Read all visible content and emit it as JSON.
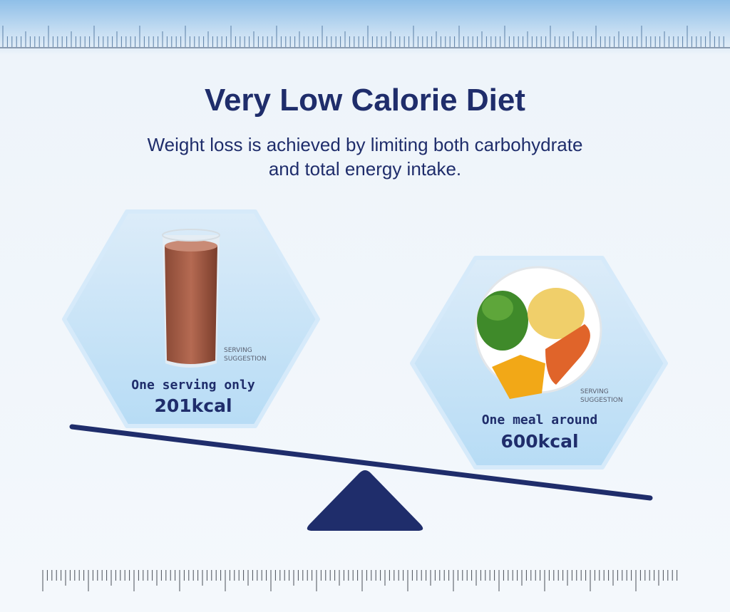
{
  "title": "Very Low Calorie Diet",
  "subtitle": [
    "Weight loss is achieved by limiting both carbohydrate",
    "and total energy intake."
  ],
  "items": [
    {
      "caption": "One serving only",
      "energy": "201kcal",
      "note": [
        "SERVING",
        "SUGGESTION"
      ]
    },
    {
      "caption": "One meal around",
      "energy": "600kcal",
      "note": [
        "SERVING",
        "SUGGESTION"
      ]
    }
  ]
}
